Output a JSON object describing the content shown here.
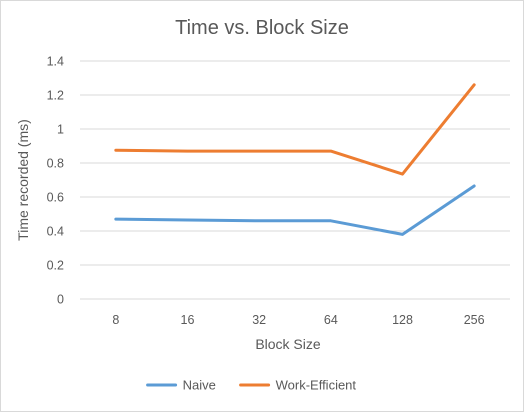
{
  "chart_data": {
    "type": "line",
    "title": "Time vs. Block Size",
    "xlabel": "Block Size",
    "ylabel": "Time recorded (ms)",
    "categories": [
      "8",
      "16",
      "32",
      "64",
      "128",
      "256"
    ],
    "ylim": [
      0,
      1.4
    ],
    "yticks": [
      "0",
      "0.2",
      "0.4",
      "0.6",
      "0.8",
      "1",
      "1.2",
      "1.4"
    ],
    "grid": true,
    "legend_position": "bottom",
    "series": [
      {
        "name": "Naive",
        "color": "#5B9BD5",
        "values": [
          0.47,
          0.465,
          0.46,
          0.46,
          0.38,
          0.665
        ]
      },
      {
        "name": "Work-Efficient",
        "color": "#ED7D31",
        "values": [
          0.875,
          0.87,
          0.87,
          0.87,
          0.735,
          1.26
        ]
      }
    ]
  }
}
